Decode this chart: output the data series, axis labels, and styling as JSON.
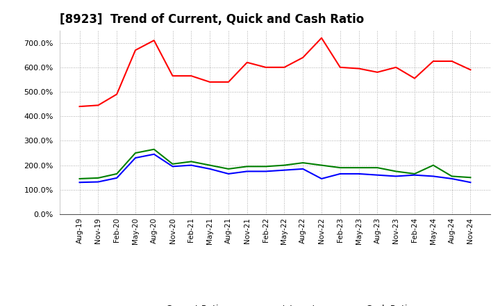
{
  "title": "[8923]  Trend of Current, Quick and Cash Ratio",
  "title_fontsize": 12,
  "background_color": "#ffffff",
  "plot_background_color": "#ffffff",
  "grid_color": "#aaaaaa",
  "x_labels": [
    "Aug-19",
    "Nov-19",
    "Feb-20",
    "May-20",
    "Aug-20",
    "Nov-20",
    "Feb-21",
    "May-21",
    "Aug-21",
    "Nov-21",
    "Feb-22",
    "May-22",
    "Aug-22",
    "Nov-22",
    "Feb-23",
    "May-23",
    "Aug-23",
    "Nov-23",
    "Feb-24",
    "May-24",
    "Aug-24",
    "Nov-24"
  ],
  "current_ratio": [
    440,
    445,
    490,
    670,
    710,
    565,
    565,
    540,
    540,
    620,
    600,
    600,
    640,
    720,
    600,
    595,
    580,
    600,
    555,
    625,
    625,
    590
  ],
  "quick_ratio": [
    145,
    148,
    165,
    250,
    265,
    205,
    215,
    200,
    185,
    195,
    195,
    200,
    210,
    200,
    190,
    190,
    190,
    175,
    165,
    200,
    155,
    150
  ],
  "cash_ratio": [
    130,
    132,
    148,
    230,
    245,
    195,
    200,
    185,
    165,
    175,
    175,
    180,
    185,
    145,
    165,
    165,
    160,
    155,
    160,
    155,
    145,
    130
  ],
  "ylim": [
    0,
    750
  ],
  "yticks": [
    0,
    100,
    200,
    300,
    400,
    500,
    600,
    700
  ],
  "line_colors": {
    "current": "#ff0000",
    "quick": "#008000",
    "cash": "#0000ff"
  },
  "line_width": 1.5,
  "legend_labels": [
    "Current Ratio",
    "Quick Ratio",
    "Cash Ratio"
  ]
}
